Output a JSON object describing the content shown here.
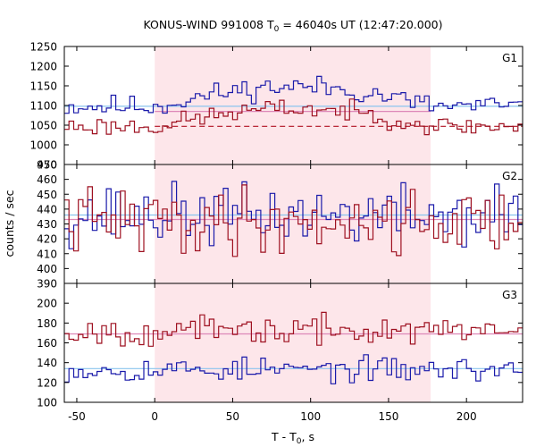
{
  "chart_data": {
    "type": "line",
    "title": {
      "prefix": "KONUS-WIND 991008 T",
      "sub": "0",
      "suffix": " = 46040s UT (12:47:20.000)"
    },
    "xlabel": {
      "prefix": "T - T",
      "sub": "0",
      "suffix": ", s"
    },
    "ylabel": "counts / sec",
    "xlim": [
      -58,
      236
    ],
    "xticks": [
      -50,
      0,
      50,
      100,
      150,
      200
    ],
    "highlight": {
      "from": 0,
      "to": 177,
      "color": "#fde6ea"
    },
    "colors": {
      "blue": "#1a1aaa",
      "red": "#9e1020",
      "bg_blue": "#8ac4ee",
      "bg_red": "#dd88b8",
      "bg_red_dashed": "#b01020"
    },
    "panels": [
      {
        "label": "G1",
        "ylim": [
          950,
          1250
        ],
        "yticks": [
          950,
          1000,
          1050,
          1100,
          1150,
          1200,
          1250
        ],
        "series": [
          {
            "color": "blue",
            "base": 1098,
            "bump": 50,
            "amp": 14,
            "seed": 11
          },
          {
            "color": "red",
            "base": 1047,
            "bump": 45,
            "amp": 12,
            "seed": 23
          }
        ],
        "backgrounds": [
          {
            "value": 1098,
            "color": "bg_blue",
            "dashed": false,
            "from": -58,
            "to": 236
          },
          {
            "value": 1085,
            "color": "bg_red",
            "dashed": false,
            "from": 0,
            "to": 177
          },
          {
            "value": 1047,
            "color": "bg_red_dashed",
            "dashed": true,
            "from": 0,
            "to": 236
          }
        ]
      },
      {
        "label": "G2",
        "ylim": [
          390,
          470
        ],
        "yticks": [
          390,
          400,
          410,
          420,
          430,
          440,
          450,
          460,
          470
        ],
        "series": [
          {
            "color": "blue",
            "base": 436,
            "bump": 0,
            "amp": 10,
            "seed": 37
          },
          {
            "color": "red",
            "base": 432,
            "bump": 0,
            "amp": 11,
            "seed": 41
          }
        ],
        "backgrounds": [
          {
            "value": 436,
            "color": "bg_blue",
            "dashed": false,
            "from": -58,
            "to": 236
          },
          {
            "value": 433,
            "color": "bg_red",
            "dashed": false,
            "from": -58,
            "to": 236
          }
        ]
      },
      {
        "label": "G3",
        "ylim": [
          100,
          220
        ],
        "yticks": [
          100,
          120,
          140,
          160,
          180,
          200
        ],
        "series": [
          {
            "color": "blue",
            "base": 133,
            "bump": 0,
            "amp": 6,
            "seed": 53
          },
          {
            "color": "red",
            "base": 172,
            "bump": 0,
            "amp": 7,
            "seed": 67
          }
        ],
        "backgrounds": [
          {
            "value": 134,
            "color": "bg_blue",
            "dashed": false,
            "from": -58,
            "to": 236
          },
          {
            "value": 169,
            "color": "bg_red",
            "dashed": false,
            "from": -58,
            "to": 236
          }
        ]
      }
    ]
  }
}
